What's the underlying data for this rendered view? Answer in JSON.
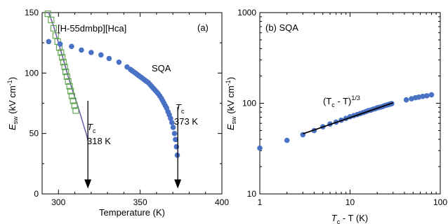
{
  "colors": {
    "sqa": "#4a72c4",
    "compound_marker": "#5aa04a",
    "compound_fit": "#6a5aa8",
    "fit_line": "#000000"
  },
  "chart_data": [
    {
      "type": "scatter",
      "panel_label": "(a)",
      "xlabel": "Temperature (K)",
      "ylabel": {
        "main": "E",
        "sub": "sw",
        "rest": " (kV cm",
        "sup": "-1",
        "end": ")"
      },
      "xlim": [
        290,
        400
      ],
      "ylim": [
        0,
        150
      ],
      "x_ticks": [
        300,
        350,
        400
      ],
      "y_ticks": [
        0,
        50,
        100,
        150
      ],
      "grid": false,
      "series": [
        {
          "name": "[H-55dmbp][Hca]",
          "marker": "open-square",
          "x": [
            293.5,
            295.5,
            297,
            298.3,
            299.5,
            300.5,
            301.5,
            302.3,
            303,
            303.8,
            304.5,
            305.2,
            306,
            306.8,
            307.5,
            308.2,
            309,
            309.8,
            310.6
          ],
          "y": [
            149,
            144,
            137,
            131,
            126,
            121,
            117,
            113,
            109,
            105,
            101,
            97,
            93,
            89,
            85,
            81,
            77,
            73,
            69
          ]
        },
        {
          "name": "SQA",
          "marker": "filled-circle",
          "x": [
            294,
            301,
            308,
            314,
            320,
            326,
            331,
            337,
            342,
            344,
            345,
            346,
            347,
            348,
            349,
            350,
            351,
            352,
            353,
            354,
            355,
            356,
            357,
            358,
            359,
            360,
            361,
            362,
            363,
            363.8,
            364.6,
            365.4,
            366.2,
            367,
            367.8,
            368.6,
            369.4,
            370.2,
            371,
            371.6,
            372.2,
            372.7
          ],
          "y": [
            126,
            124,
            122,
            119,
            117,
            115,
            112,
            109,
            105,
            103,
            102,
            101,
            100,
            99,
            98,
            97,
            96,
            95,
            94,
            93,
            92,
            90.5,
            89,
            87.5,
            86,
            84.5,
            83,
            81,
            79,
            77,
            75,
            73,
            71,
            68,
            65.5,
            62.5,
            59,
            55,
            50,
            45,
            39,
            32
          ]
        }
      ],
      "fit_curve": {
        "x": [
          294,
          297,
          300,
          303,
          306,
          309,
          312,
          314,
          316,
          317,
          318
        ],
        "y": [
          153,
          139,
          125,
          111,
          97,
          84,
          72,
          63,
          54,
          50,
          44
        ]
      },
      "annotations": [
        {
          "text": "SQA"
        },
        {
          "text": "[H-55dmbp][Hca]"
        },
        {
          "tc": "T",
          "sub": "c",
          "value": "318 K",
          "arrow_x": 318,
          "arrow_y_from": 77,
          "arrow_y_to": 5
        },
        {
          "tc": "T",
          "sub": "c",
          "value": "373 K",
          "arrow_x": 373,
          "arrow_y_from": 72,
          "arrow_y_to": 5
        }
      ]
    },
    {
      "type": "scatter",
      "panel_label": "(b) SQA",
      "scale": "log-log",
      "xlabel": {
        "main": "T",
        "sub": "c",
        "rest": " - T (K)"
      },
      "ylabel": {
        "main": "E",
        "sub": "sw",
        "rest": " (kV cm",
        "sup": "-1",
        "end": ")"
      },
      "xlim": [
        1,
        100
      ],
      "ylim": [
        10,
        1000
      ],
      "x_ticks": [
        1,
        10,
        100
      ],
      "y_ticks": [
        10,
        100,
        1000
      ],
      "grid": false,
      "series": [
        {
          "name": "SQA",
          "marker": "filled-circle",
          "x": [
            1,
            2,
            3,
            4,
            5,
            6,
            7,
            8,
            9,
            10,
            11,
            12,
            13,
            14,
            15,
            16,
            17,
            18,
            19,
            20,
            21,
            22,
            23,
            24,
            25,
            26,
            27,
            28,
            29,
            42,
            48,
            53,
            58,
            64,
            71,
            80
          ],
          "y": [
            32,
            39,
            45,
            50,
            55,
            59,
            62,
            65,
            68,
            71,
            73,
            75,
            77,
            79,
            81,
            83,
            84,
            86,
            87,
            89,
            90,
            91,
            92,
            94,
            95,
            96,
            97,
            98,
            99,
            109,
            112,
            115,
            117,
            119,
            121,
            124
          ]
        }
      ],
      "fit_line": {
        "x": [
          3,
          30
        ],
        "y": [
          46,
          101
        ]
      },
      "annotation": {
        "expr": "(T",
        "sub": "c",
        "rest": " - T)",
        "sup": "1/3"
      }
    }
  ]
}
